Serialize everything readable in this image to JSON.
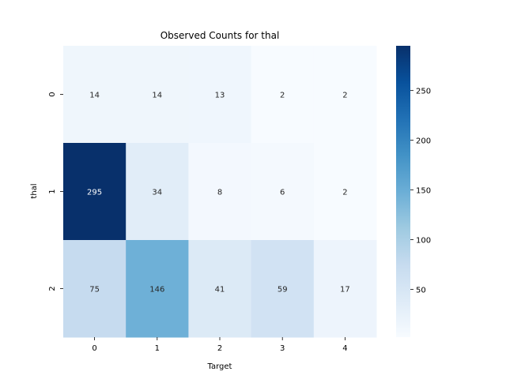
{
  "chart_data": {
    "type": "heatmap",
    "title": "Observed Counts for thal",
    "xlabel": "Target",
    "ylabel": "thal",
    "x_categories": [
      "0",
      "1",
      "2",
      "3",
      "4"
    ],
    "y_categories": [
      "0",
      "1",
      "2"
    ],
    "values": [
      [
        14,
        14,
        13,
        2,
        2
      ],
      [
        295,
        34,
        8,
        6,
        2
      ],
      [
        75,
        146,
        41,
        59,
        17
      ]
    ],
    "colormap": "Blues",
    "vmin": 2,
    "vmax": 295,
    "colorbar_ticks": [
      50,
      100,
      150,
      200,
      250
    ],
    "grid": false,
    "legend": "colorbar-right"
  }
}
